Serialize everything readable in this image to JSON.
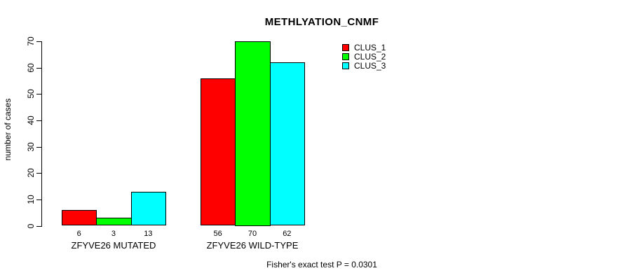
{
  "chart_data": {
    "type": "bar",
    "title": "METHLYATION_CNMF",
    "xlabel": "",
    "ylabel": "number of cases",
    "ylim": [
      0,
      70
    ],
    "yticks": [
      0,
      10,
      20,
      30,
      40,
      50,
      60,
      70
    ],
    "grid": false,
    "legend_position": "top-right",
    "categories": [
      "ZFYVE26 MUTATED",
      "ZFYVE26 WILD-TYPE"
    ],
    "series": [
      {
        "name": "CLUS_1",
        "color": "#ff0000",
        "values": [
          6,
          56
        ]
      },
      {
        "name": "CLUS_2",
        "color": "#00ff00",
        "values": [
          3,
          70
        ]
      },
      {
        "name": "CLUS_3",
        "color": "#00ffff",
        "values": [
          13,
          62
        ]
      }
    ],
    "groups": [
      {
        "label": "ZFYVE26 MUTATED",
        "values": [
          6,
          3,
          13
        ]
      },
      {
        "label": "ZFYVE26 WILD-TYPE",
        "values": [
          56,
          70,
          62
        ]
      }
    ],
    "bar_value_labels": [
      "6",
      "3",
      "13",
      "56",
      "70",
      "62"
    ]
  },
  "footer": {
    "caption": "Fisher's exact test P = 0.0301"
  }
}
